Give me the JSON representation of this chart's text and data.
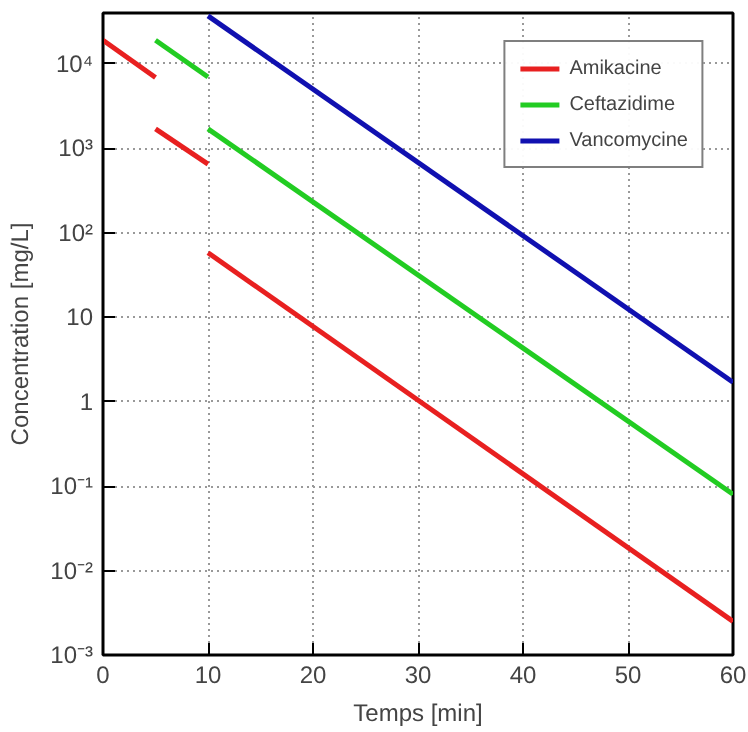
{
  "chart_data": {
    "type": "line",
    "xlabel": "Temps [min]",
    "ylabel": "Concentration [mg/L]",
    "log": "y",
    "xlim": [
      0,
      60
    ],
    "xticks": [
      0,
      10,
      20,
      30,
      40,
      50,
      60
    ],
    "ylim": [
      0.001,
      40000
    ],
    "yticks": [
      {
        "value": 0.001,
        "label": "10⁻³"
      },
      {
        "value": 0.01,
        "label": "10⁻²"
      },
      {
        "value": 0.1,
        "label": "10⁻¹"
      },
      {
        "value": 1,
        "label": "1"
      },
      {
        "value": 10,
        "label": "10"
      },
      {
        "value": 100,
        "label": "10²"
      },
      {
        "value": 1000,
        "label": "10³"
      },
      {
        "value": 10000,
        "label": "10⁴"
      }
    ],
    "grid": true,
    "legend": "top right",
    "line_style": "solid",
    "marker": "none",
    "series": [
      {
        "name": "Amikacine",
        "color": "#e82020",
        "x": [
          0,
          5
        ],
        "values": [
          19000,
          6900
        ]
      },
      {
        "color": "#e82020",
        "x": [
          5,
          10
        ],
        "values": [
          1700,
          650
        ]
      },
      {
        "color": "#e82020",
        "x": [
          10,
          60
        ],
        "values": [
          58,
          0.0025
        ]
      },
      {
        "name": "Ceftazidime",
        "color": "#22cc22",
        "x": [
          5,
          10
        ],
        "values": [
          19000,
          7000
        ]
      },
      {
        "color": "#22cc22",
        "x": [
          10,
          60
        ],
        "values": [
          1700,
          0.08
        ]
      },
      {
        "name": "Vancomycine",
        "color": "#1010b0",
        "x": [
          10,
          60
        ],
        "values": [
          37000,
          1.7
        ]
      }
    ]
  }
}
